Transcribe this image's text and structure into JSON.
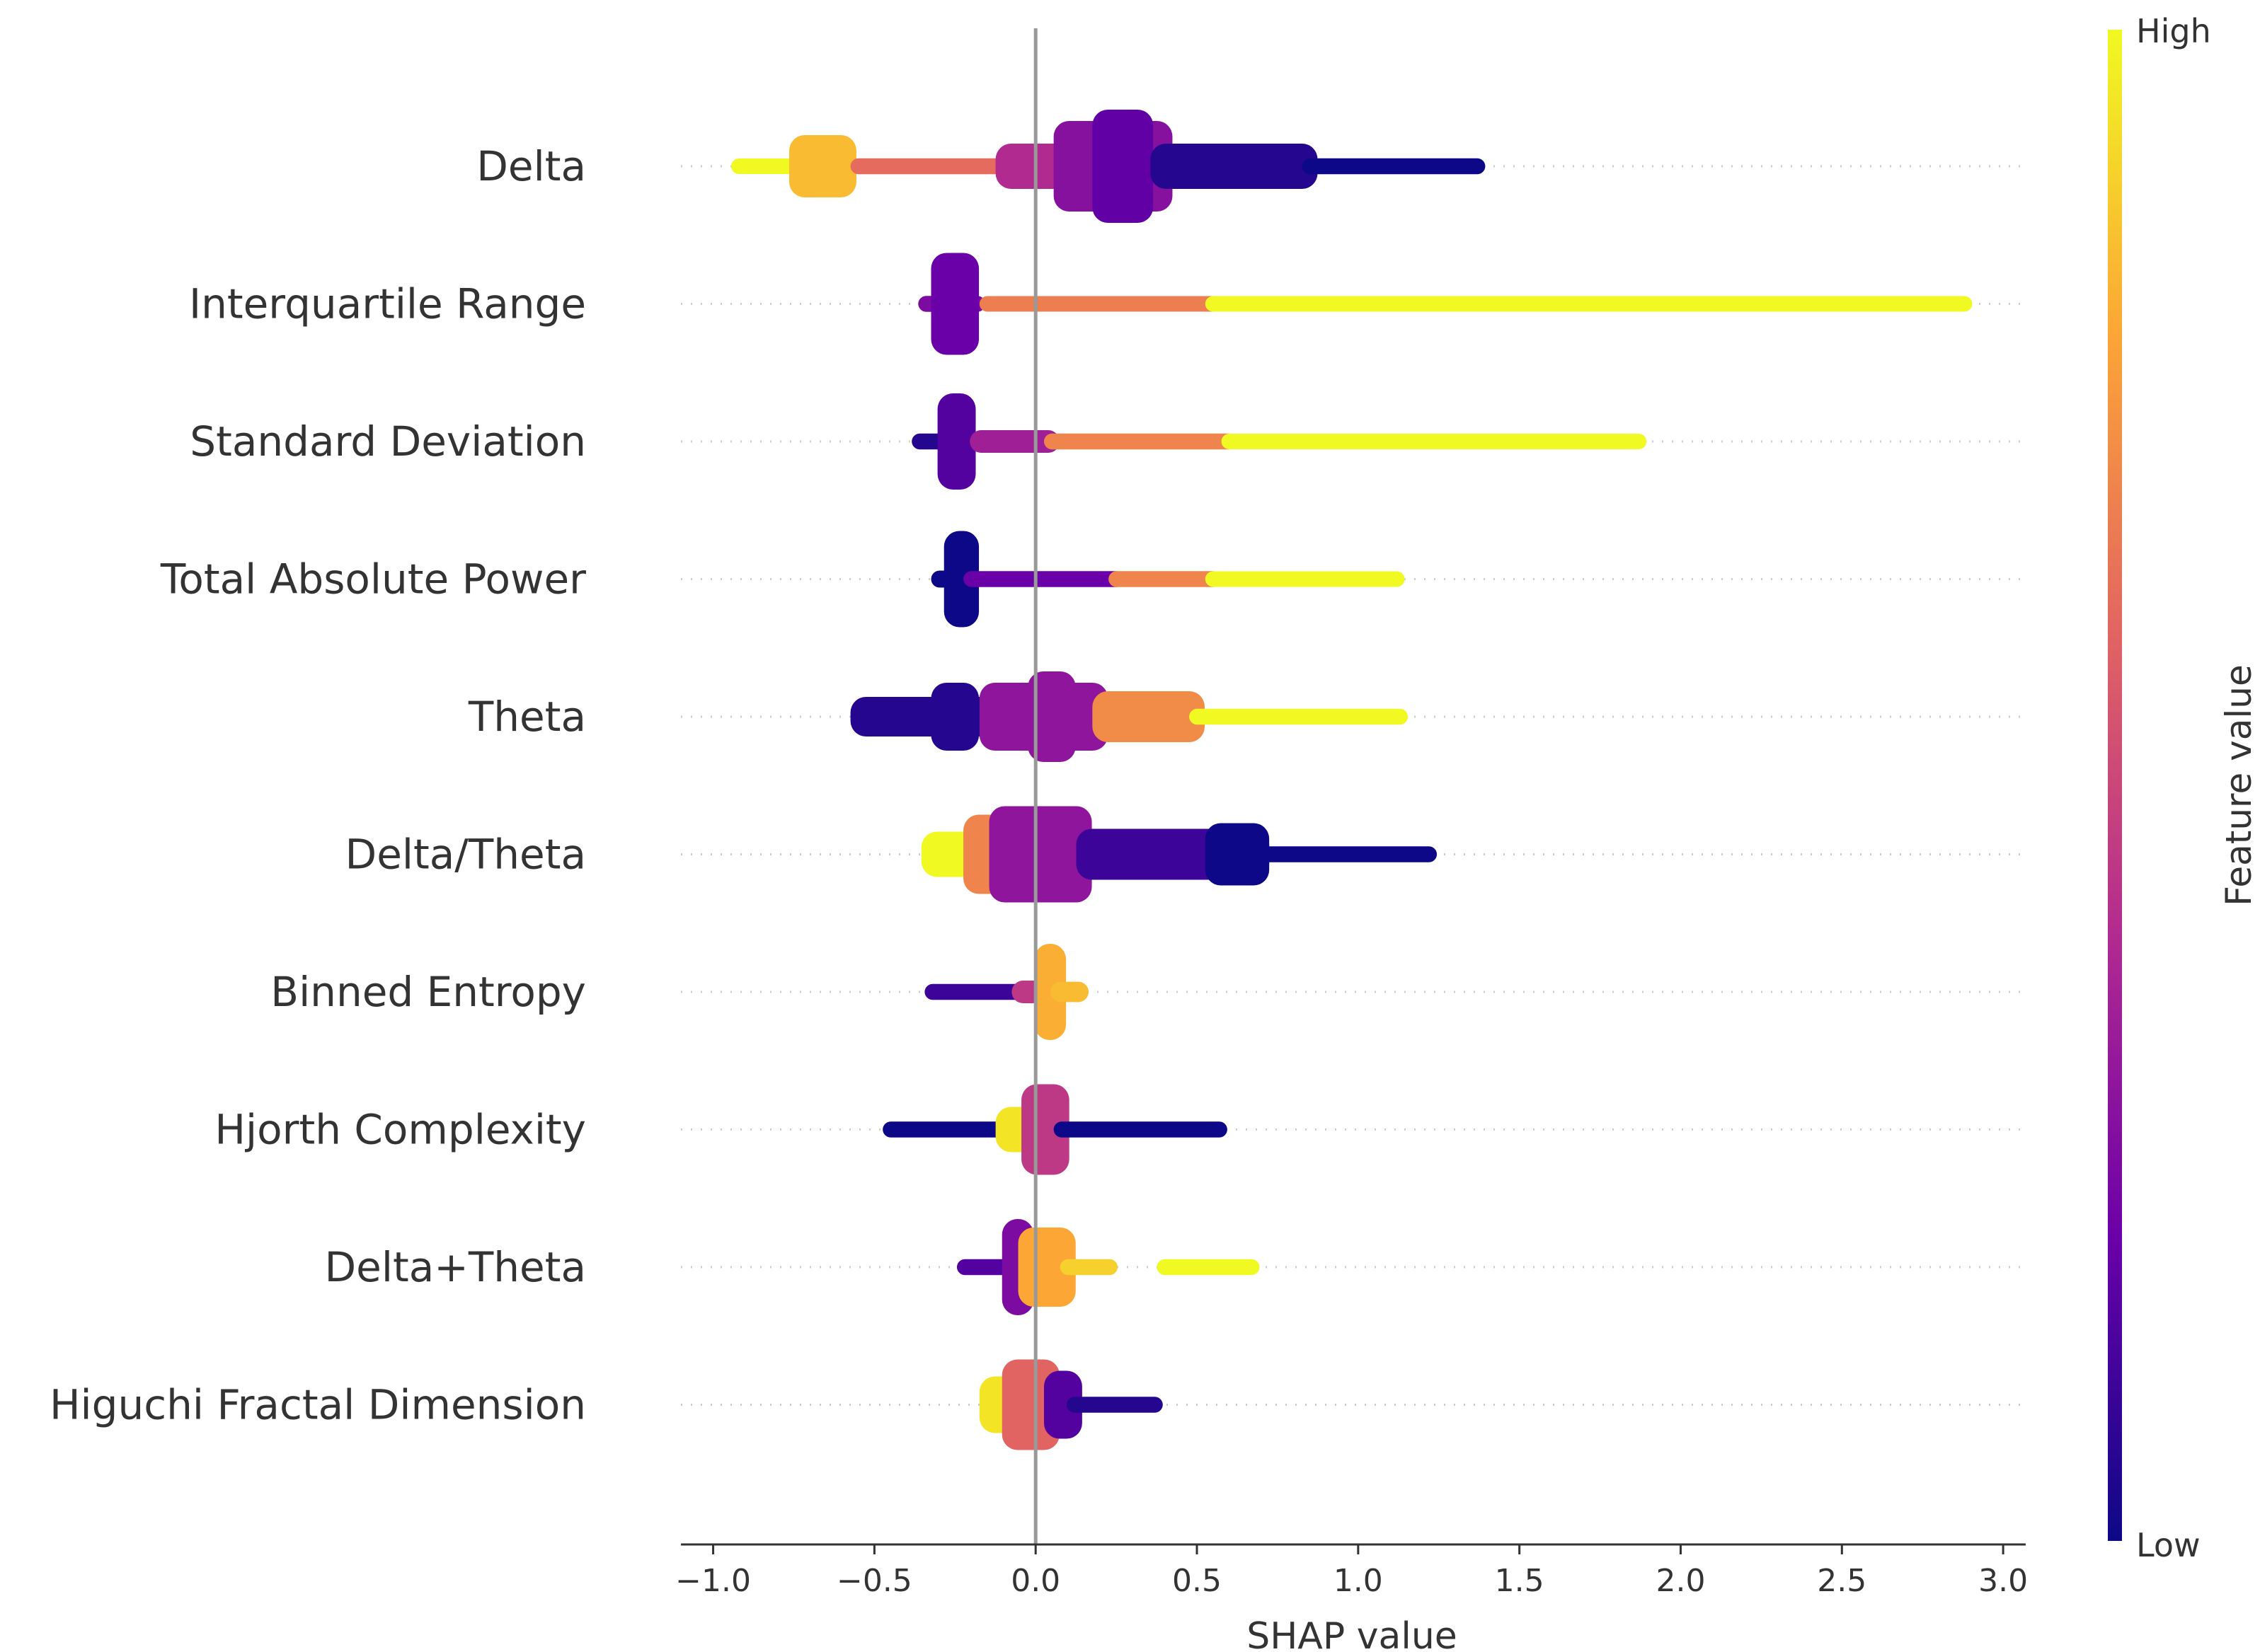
{
  "chart_data": {
    "type": "scatter",
    "subtype": "shap-beeswarm-summary",
    "title": "",
    "xlabel": "SHAP value",
    "ylabel": "",
    "xlim": [
      -1.1,
      3.07
    ],
    "xticks": [
      -1.0,
      -0.5,
      0.0,
      0.5,
      1.0,
      1.5,
      2.0,
      2.5,
      3.0
    ],
    "xtick_labels": [
      "−1.0",
      "−0.5",
      "0.0",
      "0.5",
      "1.0",
      "1.5",
      "2.0",
      "2.5",
      "3.0"
    ],
    "zero_line": 0.0,
    "grid": "dotted horizontal per feature",
    "colorbar": {
      "label": "Feature value",
      "high_label": "High",
      "low_label": "Low",
      "colormap": "plasma",
      "colors": [
        "#0d0887",
        "#6a00a8",
        "#b12a90",
        "#e16462",
        "#fca636",
        "#f0f921"
      ]
    },
    "features": [
      {
        "name": "Delta",
        "segments": [
          {
            "x0": -0.92,
            "x1": -0.62,
            "w": 0.1,
            "c": 1.0
          },
          {
            "x0": -0.74,
            "x1": -0.58,
            "w": 0.55,
            "c": 0.85
          },
          {
            "x0": -0.55,
            "x1": -0.08,
            "w": 0.14,
            "c": 0.62
          },
          {
            "x0": -0.1,
            "x1": 0.1,
            "w": 0.4,
            "c": 0.4
          },
          {
            "x0": 0.08,
            "x1": 0.4,
            "w": 0.8,
            "c": 0.28
          },
          {
            "x0": 0.2,
            "x1": 0.34,
            "w": 1.0,
            "c": 0.18
          },
          {
            "x0": 0.38,
            "x1": 0.85,
            "w": 0.4,
            "c": 0.05
          },
          {
            "x0": 0.85,
            "x1": 1.37,
            "w": 0.14,
            "c": 0.0
          }
        ]
      },
      {
        "name": "Interquartile Range",
        "segments": [
          {
            "x0": -0.34,
            "x1": -0.18,
            "w": 0.14,
            "c": 0.25
          },
          {
            "x0": -0.3,
            "x1": -0.2,
            "w": 0.9,
            "c": 0.2
          },
          {
            "x0": -0.15,
            "x1": 0.55,
            "w": 0.12,
            "c": 0.68
          },
          {
            "x0": 0.55,
            "x1": 2.88,
            "w": 0.12,
            "c": 1.0
          }
        ]
      },
      {
        "name": "Standard Deviation",
        "segments": [
          {
            "x0": -0.36,
            "x1": -0.18,
            "w": 0.14,
            "c": 0.05
          },
          {
            "x0": -0.28,
            "x1": -0.21,
            "w": 0.85,
            "c": 0.15
          },
          {
            "x0": -0.18,
            "x1": 0.05,
            "w": 0.2,
            "c": 0.35
          },
          {
            "x0": 0.05,
            "x1": 0.6,
            "w": 0.14,
            "c": 0.7
          },
          {
            "x0": 0.6,
            "x1": 1.87,
            "w": 0.12,
            "c": 1.0
          }
        ]
      },
      {
        "name": "Total Absolute Power",
        "segments": [
          {
            "x0": -0.3,
            "x1": -0.2,
            "w": 0.15,
            "c": 0.0
          },
          {
            "x0": -0.26,
            "x1": -0.2,
            "w": 0.85,
            "c": 0.0
          },
          {
            "x0": -0.2,
            "x1": 0.25,
            "w": 0.14,
            "c": 0.2
          },
          {
            "x0": 0.25,
            "x1": 0.55,
            "w": 0.14,
            "c": 0.7
          },
          {
            "x0": 0.55,
            "x1": 1.12,
            "w": 0.12,
            "c": 1.0
          }
        ]
      },
      {
        "name": "Theta",
        "segments": [
          {
            "x0": -0.55,
            "x1": -0.15,
            "w": 0.35,
            "c": 0.05
          },
          {
            "x0": -0.3,
            "x1": -0.2,
            "w": 0.6,
            "c": 0.05
          },
          {
            "x0": -0.15,
            "x1": 0.2,
            "w": 0.6,
            "c": 0.3
          },
          {
            "x0": 0.0,
            "x1": 0.1,
            "w": 0.8,
            "c": 0.3
          },
          {
            "x0": 0.2,
            "x1": 0.5,
            "w": 0.45,
            "c": 0.72
          },
          {
            "x0": 0.5,
            "x1": 1.13,
            "w": 0.14,
            "c": 1.0
          }
        ]
      },
      {
        "name": "Delta/Theta",
        "segments": [
          {
            "x0": -0.33,
            "x1": -0.18,
            "w": 0.4,
            "c": 1.0
          },
          {
            "x0": -0.2,
            "x1": -0.1,
            "w": 0.7,
            "c": 0.7
          },
          {
            "x0": -0.12,
            "x1": 0.15,
            "w": 0.85,
            "c": 0.3
          },
          {
            "x0": 0.15,
            "x1": 0.7,
            "w": 0.45,
            "c": 0.1
          },
          {
            "x0": 0.55,
            "x1": 0.7,
            "w": 0.55,
            "c": 0.0
          },
          {
            "x0": 0.7,
            "x1": 1.22,
            "w": 0.14,
            "c": 0.0
          }
        ]
      },
      {
        "name": "Binned Entropy",
        "segments": [
          {
            "x0": -0.32,
            "x1": -0.05,
            "w": 0.14,
            "c": 0.1
          },
          {
            "x0": -0.05,
            "x1": 0.03,
            "w": 0.2,
            "c": 0.45
          },
          {
            "x0": 0.02,
            "x1": 0.07,
            "w": 0.85,
            "c": 0.82
          },
          {
            "x0": 0.07,
            "x1": 0.14,
            "w": 0.18,
            "c": 0.85
          }
        ]
      },
      {
        "name": "Hjorth Complexity",
        "segments": [
          {
            "x0": -0.45,
            "x1": -0.1,
            "w": 0.14,
            "c": 0.0
          },
          {
            "x0": -0.1,
            "x1": -0.02,
            "w": 0.4,
            "c": 0.95
          },
          {
            "x0": -0.02,
            "x1": 0.08,
            "w": 0.8,
            "c": 0.45
          },
          {
            "x0": 0.08,
            "x1": 0.57,
            "w": 0.14,
            "c": 0.0
          }
        ]
      },
      {
        "name": "Delta+Theta",
        "segments": [
          {
            "x0": -0.22,
            "x1": -0.08,
            "w": 0.14,
            "c": 0.15
          },
          {
            "x0": -0.08,
            "x1": -0.03,
            "w": 0.85,
            "c": 0.25
          },
          {
            "x0": -0.03,
            "x1": 0.1,
            "w": 0.7,
            "c": 0.8
          },
          {
            "x0": 0.1,
            "x1": 0.23,
            "w": 0.14,
            "c": 0.9
          },
          {
            "x0": 0.4,
            "x1": 0.67,
            "w": 0.14,
            "c": 1.0
          }
        ]
      },
      {
        "name": "Higuchi Fractal Dimension",
        "segments": [
          {
            "x0": -0.15,
            "x1": -0.02,
            "w": 0.5,
            "c": 0.95
          },
          {
            "x0": -0.08,
            "x1": 0.05,
            "w": 0.8,
            "c": 0.6
          },
          {
            "x0": 0.05,
            "x1": 0.12,
            "w": 0.6,
            "c": 0.15
          },
          {
            "x0": 0.12,
            "x1": 0.37,
            "w": 0.14,
            "c": 0.05
          }
        ]
      }
    ]
  }
}
